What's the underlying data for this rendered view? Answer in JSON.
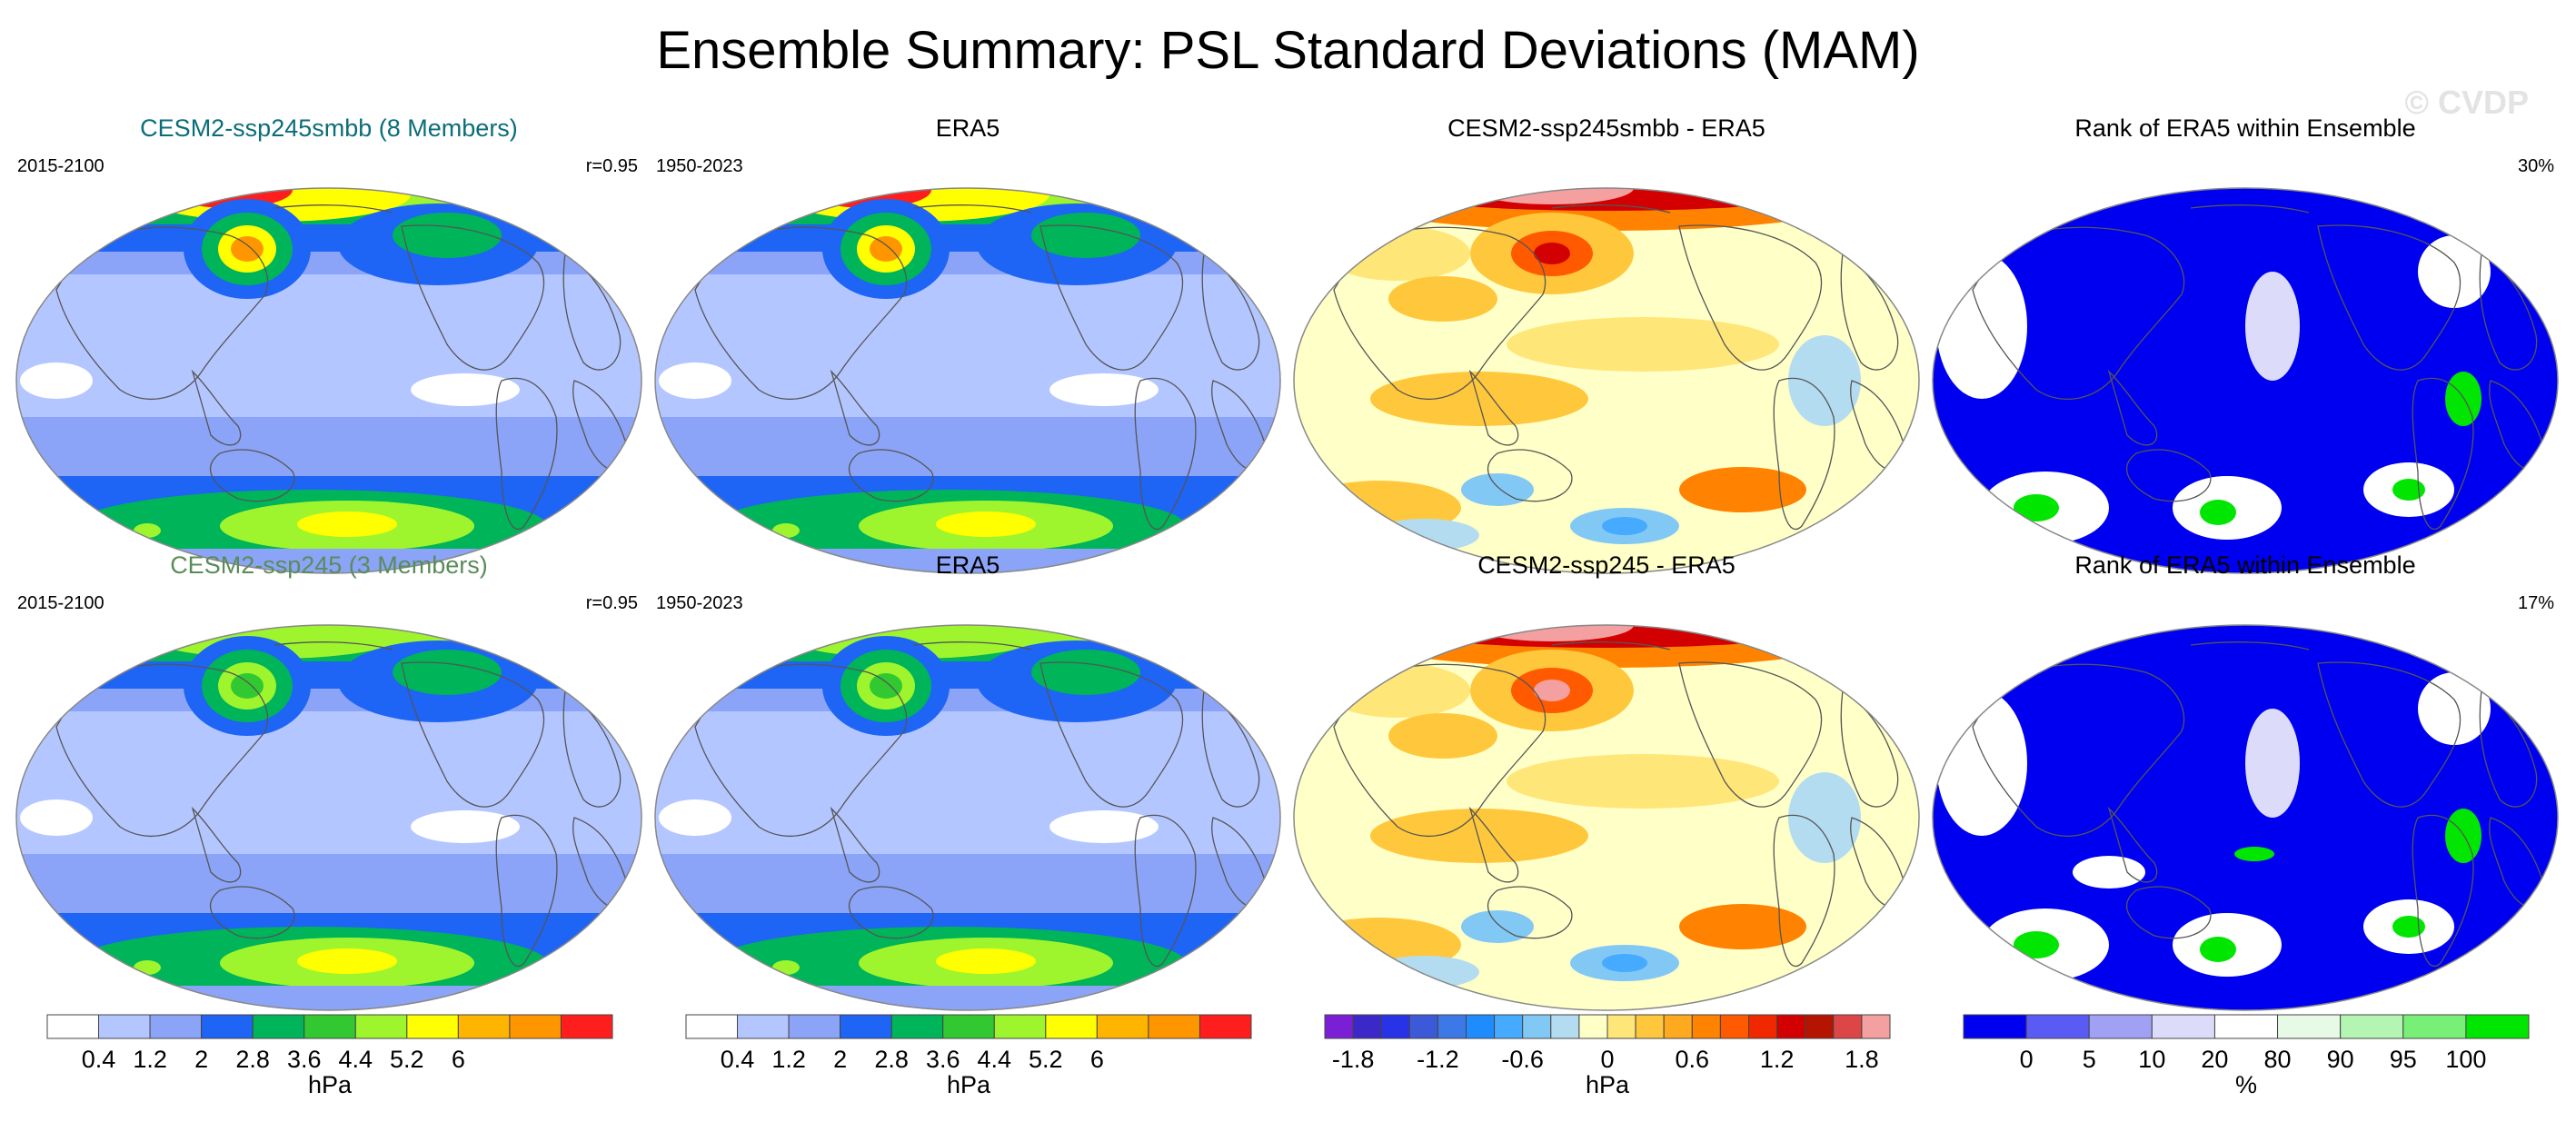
{
  "title": "Ensemble Summary: PSL Standard Deviations (MAM)",
  "watermark": "© CVDP",
  "rows": [
    {
      "panels": [
        {
          "title": "CESM2-ssp245smbb (8 Members)",
          "title_color": "#0b6d7a",
          "left_label": "2015-2100",
          "right_label": "r=0.95",
          "kind": "std"
        },
        {
          "title": "ERA5",
          "title_color": "#000000",
          "left_label": "1950-2023",
          "right_label": "",
          "kind": "std"
        },
        {
          "title": "CESM2-ssp245smbb - ERA5",
          "title_color": "#000000",
          "left_label": "",
          "right_label": "",
          "kind": "diff"
        },
        {
          "title": "Rank of ERA5 within Ensemble",
          "title_color": "#000000",
          "left_label": "",
          "right_label": "30%",
          "kind": "rank"
        }
      ]
    },
    {
      "panels": [
        {
          "title": "CESM2-ssp245 (3 Members)",
          "title_color": "#5a8c5a",
          "left_label": "2015-2100",
          "right_label": "r=0.95",
          "kind": "std"
        },
        {
          "title": "ERA5",
          "title_color": "#000000",
          "left_label": "1950-2023",
          "right_label": "",
          "kind": "std"
        },
        {
          "title": "CESM2-ssp245 - ERA5",
          "title_color": "#000000",
          "left_label": "",
          "right_label": "",
          "kind": "diff"
        },
        {
          "title": "Rank of ERA5 within Ensemble",
          "title_color": "#000000",
          "left_label": "",
          "right_label": "17%",
          "kind": "rank"
        }
      ]
    }
  ],
  "colorbars": [
    {
      "unit": "hPa",
      "colors": [
        "#ffffff",
        "#b4c6ff",
        "#8ba4f7",
        "#1e64f5",
        "#00b45a",
        "#32c832",
        "#9ef52d",
        "#ffff00",
        "#ffb400",
        "#ff9600",
        "#ff1e1e"
      ],
      "tick_labels": [
        "0.4",
        "1.2",
        "2",
        "2.8",
        "3.6",
        "4.4",
        "5.2",
        "6"
      ]
    },
    {
      "unit": "hPa",
      "colors": [
        "#ffffff",
        "#b4c6ff",
        "#8ba4f7",
        "#1e64f5",
        "#00b45a",
        "#32c832",
        "#9ef52d",
        "#ffff00",
        "#ffb400",
        "#ff9600",
        "#ff1e1e"
      ],
      "tick_labels": [
        "0.4",
        "1.2",
        "2",
        "2.8",
        "3.6",
        "4.4",
        "5.2",
        "6"
      ]
    },
    {
      "unit": "hPa",
      "colors": [
        "#7b1fd6",
        "#3c28c8",
        "#2832e6",
        "#3c5ad7",
        "#3c78e6",
        "#1e8cff",
        "#46aaff",
        "#82c8f5",
        "#b4dcf0",
        "#ffffc8",
        "#ffe678",
        "#ffc83c",
        "#ffaa1e",
        "#ff8200",
        "#ff5a00",
        "#f02800",
        "#d20000",
        "#b41400",
        "#dc4646",
        "#f5a0a0"
      ],
      "tick_labels": [
        "-1.8",
        "-1.2",
        "-0.6",
        "0",
        "0.6",
        "1.2",
        "1.8"
      ]
    },
    {
      "unit": "%",
      "colors": [
        "#0000f0",
        "#5a5af5",
        "#a0a0f5",
        "#dcdcfa",
        "#ffffff",
        "#e6fae6",
        "#b4f5b4",
        "#78f078",
        "#00e600"
      ],
      "tick_labels": [
        "0",
        "5",
        "10",
        "20",
        "80",
        "90",
        "95",
        "100"
      ]
    }
  ]
}
